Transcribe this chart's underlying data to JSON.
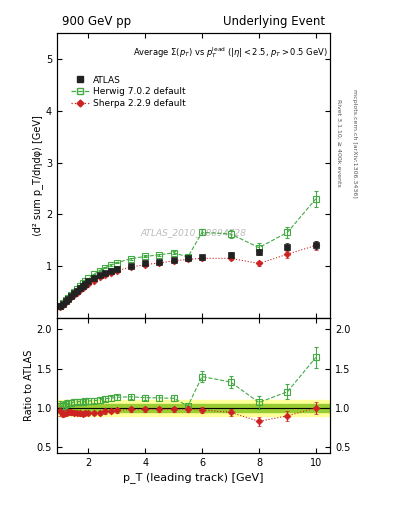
{
  "title_left": "900 GeV pp",
  "title_right": "Underlying Event",
  "watermark": "ATLAS_2010_S8894728",
  "right_label_top": "Rivet 3.1.10, ≥ 400k events",
  "right_label_bot": "mcplots.cern.ch [arXiv:1306.3436]",
  "ylabel_main": "⟨d² sum p_T/dηdφ⟩ [GeV]",
  "ylabel_ratio": "Ratio to ATLAS",
  "xlabel": "p_T (leading track) [GeV]",
  "atlas_x": [
    1.0,
    1.1,
    1.2,
    1.3,
    1.4,
    1.5,
    1.6,
    1.7,
    1.8,
    1.9,
    2.0,
    2.2,
    2.4,
    2.6,
    2.8,
    3.0,
    3.5,
    4.0,
    4.5,
    5.0,
    5.5,
    6.0,
    7.0,
    8.0,
    9.0,
    10.0
  ],
  "atlas_y": [
    0.22,
    0.27,
    0.32,
    0.37,
    0.42,
    0.47,
    0.52,
    0.57,
    0.62,
    0.66,
    0.7,
    0.77,
    0.83,
    0.87,
    0.91,
    0.94,
    1.0,
    1.05,
    1.08,
    1.12,
    1.15,
    1.18,
    1.22,
    1.27,
    1.37,
    1.4
  ],
  "atlas_yerr": [
    0.012,
    0.013,
    0.013,
    0.014,
    0.014,
    0.015,
    0.015,
    0.016,
    0.017,
    0.017,
    0.018,
    0.019,
    0.02,
    0.021,
    0.022,
    0.023,
    0.025,
    0.027,
    0.029,
    0.032,
    0.035,
    0.038,
    0.045,
    0.055,
    0.065,
    0.075
  ],
  "herwig_x": [
    1.0,
    1.1,
    1.2,
    1.3,
    1.4,
    1.5,
    1.6,
    1.7,
    1.8,
    1.9,
    2.0,
    2.2,
    2.4,
    2.6,
    2.8,
    3.0,
    3.5,
    4.0,
    4.5,
    5.0,
    5.5,
    6.0,
    7.0,
    8.0,
    9.0,
    10.0
  ],
  "herwig_y": [
    0.225,
    0.275,
    0.335,
    0.39,
    0.445,
    0.505,
    0.56,
    0.615,
    0.665,
    0.715,
    0.76,
    0.84,
    0.91,
    0.97,
    1.02,
    1.065,
    1.14,
    1.185,
    1.215,
    1.255,
    1.175,
    1.65,
    1.62,
    1.355,
    1.65,
    2.3
  ],
  "herwig_yerr": [
    0.005,
    0.005,
    0.006,
    0.006,
    0.007,
    0.007,
    0.008,
    0.009,
    0.009,
    0.01,
    0.011,
    0.012,
    0.013,
    0.014,
    0.015,
    0.016,
    0.018,
    0.02,
    0.022,
    0.025,
    0.028,
    0.06,
    0.07,
    0.08,
    0.1,
    0.15
  ],
  "sherpa_x": [
    1.0,
    1.1,
    1.2,
    1.3,
    1.4,
    1.5,
    1.6,
    1.7,
    1.8,
    1.9,
    2.0,
    2.2,
    2.4,
    2.6,
    2.8,
    3.0,
    3.5,
    4.0,
    4.5,
    5.0,
    5.5,
    6.0,
    7.0,
    8.0,
    9.0,
    10.0
  ],
  "sherpa_y": [
    0.21,
    0.25,
    0.3,
    0.35,
    0.395,
    0.44,
    0.485,
    0.528,
    0.57,
    0.615,
    0.655,
    0.718,
    0.778,
    0.828,
    0.868,
    0.908,
    0.978,
    1.028,
    1.058,
    1.098,
    1.128,
    1.148,
    1.148,
    1.048,
    1.228,
    1.398
  ],
  "sherpa_yerr": [
    0.004,
    0.004,
    0.005,
    0.005,
    0.006,
    0.006,
    0.007,
    0.007,
    0.008,
    0.009,
    0.009,
    0.01,
    0.011,
    0.012,
    0.013,
    0.014,
    0.016,
    0.018,
    0.02,
    0.022,
    0.025,
    0.028,
    0.04,
    0.05,
    0.07,
    0.08
  ],
  "atlas_band_inner": 0.05,
  "atlas_band_outer": 0.1,
  "atlas_color": "#222222",
  "herwig_color": "#44aa44",
  "sherpa_color": "#cc2222",
  "band_inner_color": "#99cc33",
  "band_outer_color": "#ffff99",
  "xlim": [
    0.9,
    10.5
  ],
  "ylim_main": [
    0.0,
    5.5
  ],
  "main_yticks": [
    1,
    2,
    3,
    4,
    5
  ],
  "ylim_ratio": [
    0.42,
    2.15
  ],
  "ratio_yticks": [
    0.5,
    1.0,
    1.5,
    2.0
  ]
}
